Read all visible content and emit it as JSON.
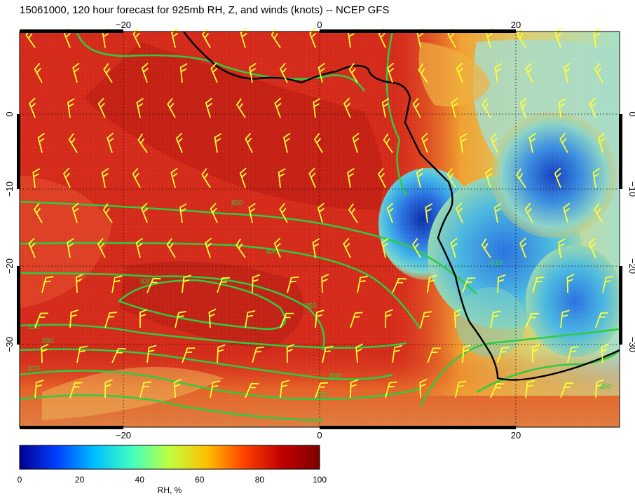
{
  "title": "15061000, 120 hour forecast for 925mb RH, Z, and winds (knots) -- NCEP GFS",
  "map": {
    "x_ticks_bottom": [
      "−20",
      "0",
      "20"
    ],
    "x_ticks_top": [
      "−20",
      "0",
      "20"
    ],
    "y_ticks_left": [
      "0",
      "−10",
      "−20",
      "−30"
    ],
    "y_ticks_right": [
      "0",
      "−10",
      "−20",
      "−30"
    ],
    "contour_labels": [
      "830",
      "830",
      "830",
      "830",
      "830",
      "850",
      "870",
      "870",
      "830",
      "850",
      "810"
    ],
    "colors": {
      "contour": "#2ecc40",
      "coastline": "#000000",
      "wind_barb": "#ffff33",
      "moist": "#d42a1a",
      "dry": "#1c3fb8"
    }
  },
  "colorbar": {
    "label": "RH, %",
    "ticks": [
      "0",
      "20",
      "40",
      "60",
      "80",
      "100"
    ],
    "range": [
      0,
      100
    ],
    "colors": [
      "#00008f",
      "#0040ff",
      "#00c0ff",
      "#40ffbf",
      "#c0ff40",
      "#ffbf00",
      "#ff4000",
      "#bf0000",
      "#800000"
    ]
  }
}
